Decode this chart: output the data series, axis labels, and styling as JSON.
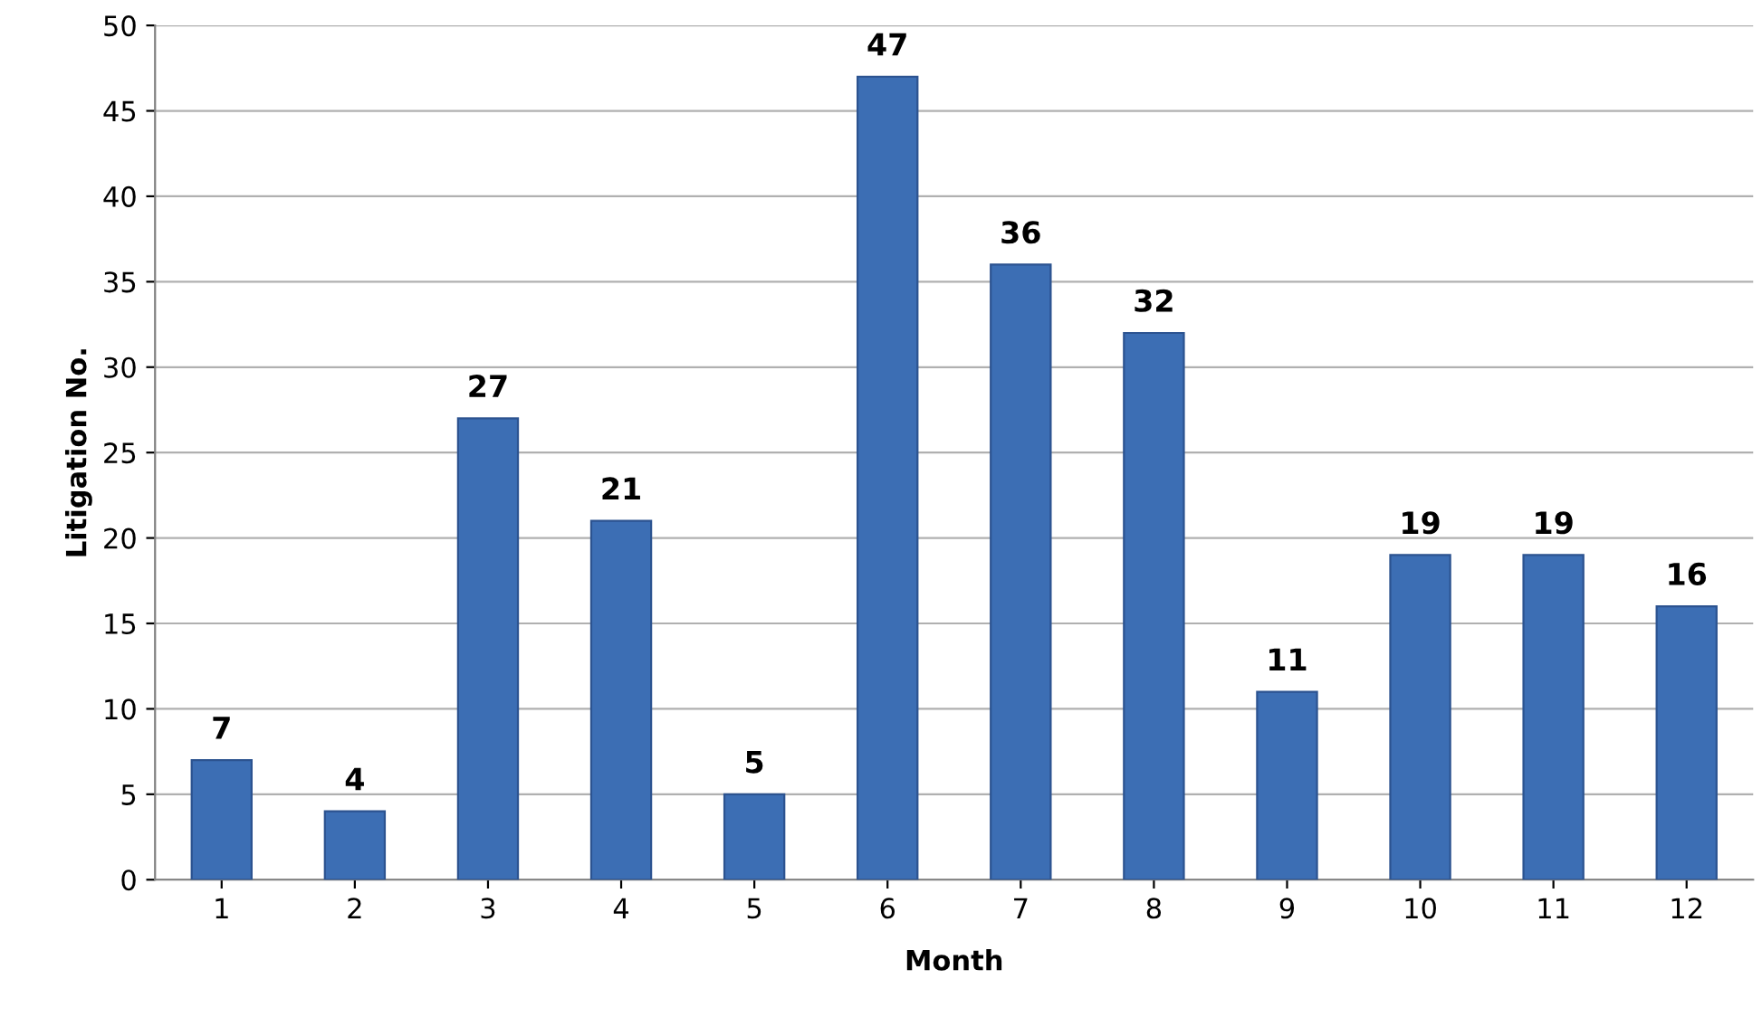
{
  "chart_data": {
    "type": "bar",
    "xlabel": "Month",
    "ylabel": "Litigation No.",
    "categories": [
      "1",
      "2",
      "3",
      "4",
      "5",
      "6",
      "7",
      "8",
      "9",
      "10",
      "11",
      "12"
    ],
    "values": [
      7,
      4,
      27,
      21,
      5,
      47,
      36,
      32,
      11,
      19,
      19,
      16
    ],
    "color": "#3c6eb4",
    "ylim": [
      0,
      50
    ],
    "yticks": [
      0,
      5,
      10,
      15,
      20,
      25,
      30,
      35,
      40,
      45,
      50
    ],
    "grid": "y",
    "data_labels": true
  }
}
